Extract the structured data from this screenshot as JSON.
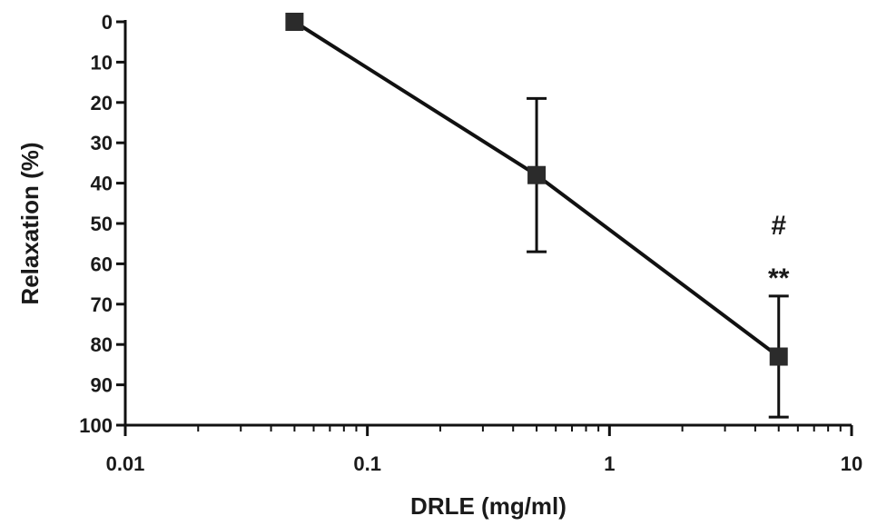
{
  "chart_data": {
    "type": "line",
    "x_scale": "log",
    "y_reversed": true,
    "xlabel": "DRLE (mg/ml)",
    "ylabel": "Relaxation (%)",
    "xlim": [
      0.01,
      10
    ],
    "ylim": [
      0,
      100
    ],
    "x_ticks": [
      {
        "value": 0.01,
        "label": "0.01"
      },
      {
        "value": 0.1,
        "label": "0.1"
      },
      {
        "value": 1,
        "label": "1"
      },
      {
        "value": 10,
        "label": "10"
      }
    ],
    "y_ticks": [
      {
        "value": 0,
        "label": "0"
      },
      {
        "value": 10,
        "label": "10"
      },
      {
        "value": 20,
        "label": "20"
      },
      {
        "value": 30,
        "label": "30"
      },
      {
        "value": 40,
        "label": "40"
      },
      {
        "value": 50,
        "label": "50"
      },
      {
        "value": 60,
        "label": "60"
      },
      {
        "value": 70,
        "label": "70"
      },
      {
        "value": 80,
        "label": "80"
      },
      {
        "value": 90,
        "label": "90"
      },
      {
        "value": 100,
        "label": "100"
      }
    ],
    "series": [
      {
        "x": [
          0.05,
          0.5,
          5
        ],
        "y": [
          0,
          38,
          83
        ],
        "error": [
          null,
          19,
          15
        ]
      }
    ],
    "annotations": [
      {
        "x": 5,
        "text": "#"
      },
      {
        "x": 5,
        "text": "**"
      }
    ],
    "grid": false,
    "colors": {
      "line": "#111111",
      "marker": "#2b2b2b",
      "text": "#1a1a1a"
    }
  }
}
